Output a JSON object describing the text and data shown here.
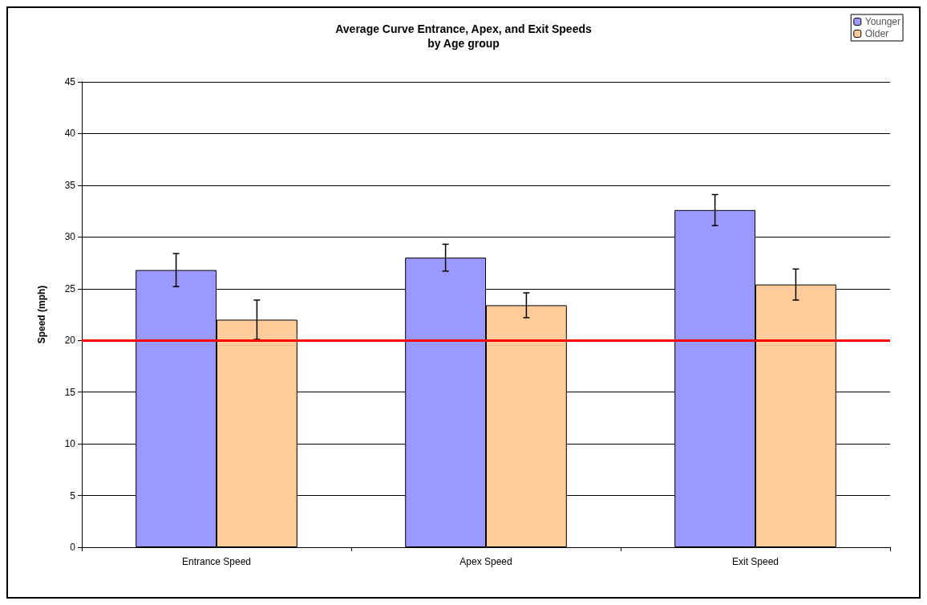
{
  "chart_data": {
    "type": "bar",
    "title": "Average Curve Entrance, Apex, and Exit Speeds\nby Age group",
    "ylabel": "Speed (mph)",
    "categories": [
      "Entrance Speed",
      "Apex Speed",
      "Exit Speed"
    ],
    "series": [
      {
        "name": "Younger",
        "color": "#9999ff",
        "values": [
          26.8,
          28.0,
          32.6
        ],
        "errors": [
          1.6,
          1.3,
          1.5
        ]
      },
      {
        "name": "Older",
        "color": "#ffcc99",
        "values": [
          22.0,
          23.4,
          25.4
        ],
        "errors": [
          1.9,
          1.2,
          1.5
        ]
      }
    ],
    "ylim": [
      0,
      45
    ],
    "yticks": [
      0,
      5,
      10,
      15,
      20,
      25,
      30,
      35,
      40,
      45
    ],
    "grid": "y",
    "legend": "top right",
    "ref_lines": [
      {
        "axis": "y",
        "value": 20,
        "color": "#ff0000"
      }
    ]
  }
}
